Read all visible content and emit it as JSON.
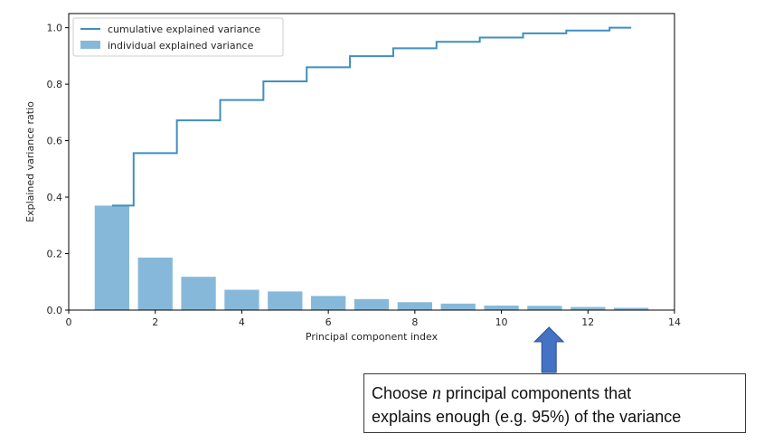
{
  "chart_data": {
    "type": "bar",
    "xlabel": "Principal component index",
    "ylabel": "Explained variance ratio",
    "xlim": [
      0,
      14
    ],
    "ylim": [
      0,
      1.05
    ],
    "xticks": [
      0,
      2,
      4,
      6,
      8,
      10,
      12,
      14
    ],
    "yticks": [
      0.0,
      0.2,
      0.4,
      0.6,
      0.8,
      1.0
    ],
    "xtick_labels": [
      "0",
      "2",
      "4",
      "6",
      "8",
      "10",
      "12",
      "14"
    ],
    "ytick_labels": [
      "0.0",
      "0.2",
      "0.4",
      "0.6",
      "0.8",
      "1.0"
    ],
    "grid": false,
    "legend_position": "top-left",
    "x": [
      1,
      2,
      3,
      4,
      5,
      6,
      7,
      8,
      9,
      10,
      11,
      12,
      13
    ],
    "series": [
      {
        "name": "cumulative explained variance",
        "kind": "step",
        "color": "#3f8fbf",
        "values": [
          0.37,
          0.556,
          0.672,
          0.744,
          0.81,
          0.86,
          0.899,
          0.927,
          0.95,
          0.965,
          0.98,
          0.99,
          1.0
        ]
      },
      {
        "name": "individual explained variance",
        "kind": "bar",
        "color": "#86b9d9",
        "values": [
          0.37,
          0.186,
          0.118,
          0.072,
          0.066,
          0.05,
          0.039,
          0.028,
          0.023,
          0.016,
          0.015,
          0.011,
          0.008
        ]
      }
    ]
  },
  "annotation": {
    "text_before": "Choose ",
    "variable": "n",
    "text_after_line1": " principal components that",
    "line2": "explains enough (e.g. 95%) of the variance",
    "arrow_color": "#4472c4",
    "arrow_target_x": 11.1
  }
}
